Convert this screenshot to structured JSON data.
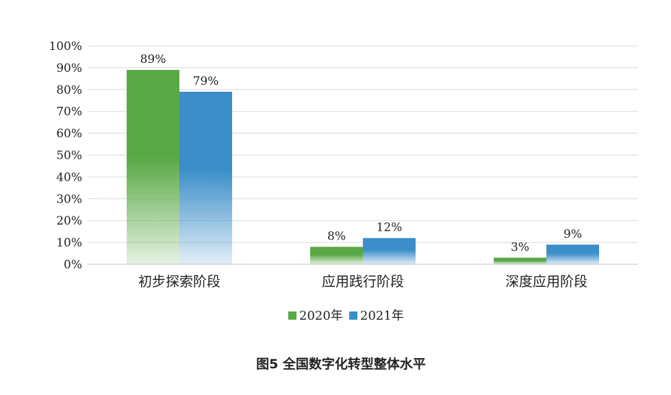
{
  "chart_data": {
    "type": "bar",
    "caption": "图5 全国数字化转型整体水平",
    "categories": [
      "初步探索阶段",
      "应用践行阶段",
      "深度应用阶段"
    ],
    "series": [
      {
        "name": "2020年",
        "color": "#5aa845",
        "values": [
          89,
          8,
          3
        ],
        "labels": [
          "89%",
          "8%",
          "3%"
        ]
      },
      {
        "name": "2021年",
        "color": "#3b8ec9",
        "values": [
          79,
          12,
          9
        ],
        "labels": [
          "79%",
          "12%",
          "9%"
        ]
      }
    ],
    "ylim": [
      0,
      100
    ],
    "yticks": [
      "0%",
      "10%",
      "20%",
      "30%",
      "40%",
      "50%",
      "60%",
      "70%",
      "80%",
      "90%",
      "100%"
    ],
    "grid": true,
    "legend_position": "bottom"
  }
}
